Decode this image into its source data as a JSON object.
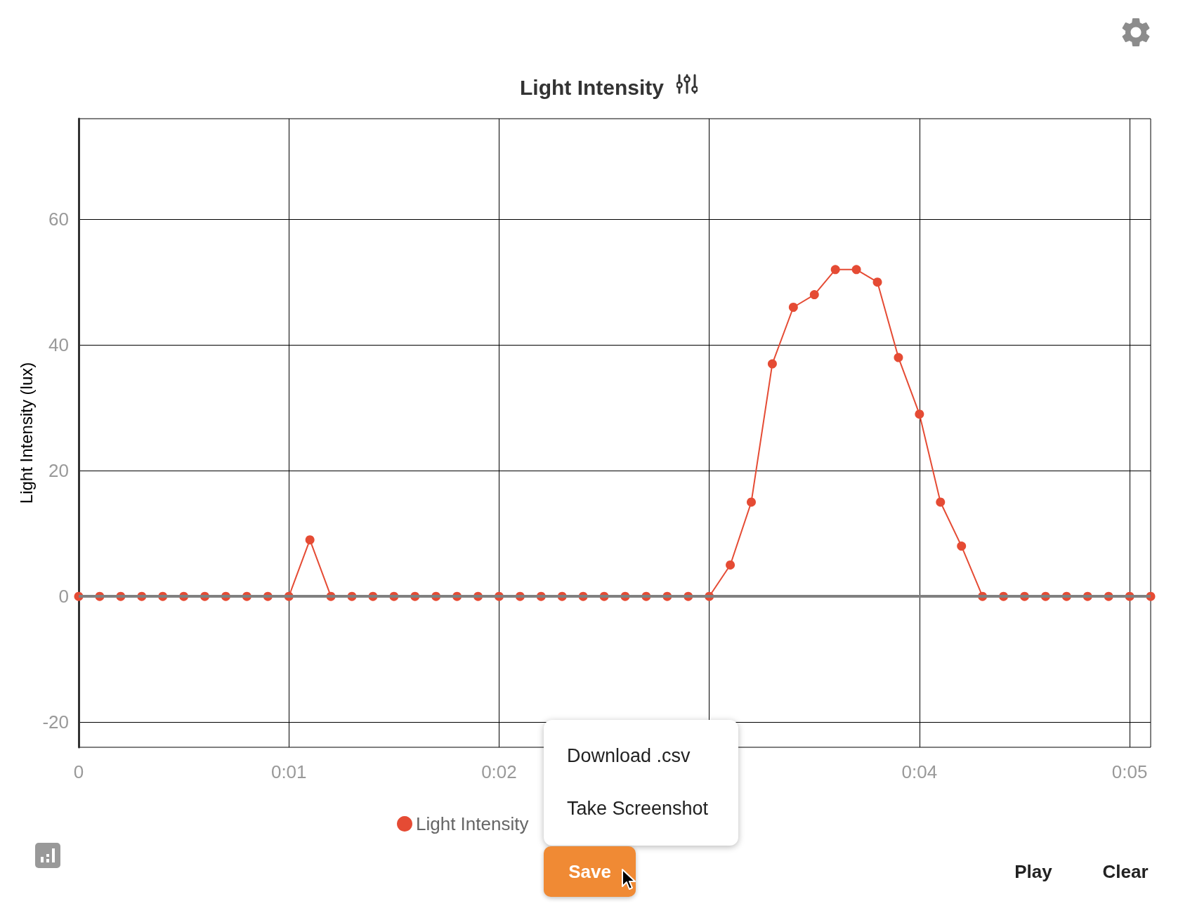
{
  "chart_data": {
    "type": "line",
    "title": "Light Intensity",
    "ylabel": "Light Intensity (lux)",
    "x": [
      0,
      0.1,
      0.2,
      0.3,
      0.4,
      0.5,
      0.6,
      0.7,
      0.8,
      0.9,
      1.0,
      1.1,
      1.2,
      1.3,
      1.4,
      1.5,
      1.6,
      1.7,
      1.8,
      1.9,
      2.0,
      2.1,
      2.2,
      2.3,
      2.4,
      2.5,
      2.6,
      2.7,
      2.8,
      2.9,
      3.0,
      3.1,
      3.2,
      3.3,
      3.4,
      3.5,
      3.6,
      3.7,
      3.8,
      3.9,
      4.0,
      4.1,
      4.2,
      4.3,
      4.4,
      4.5,
      4.6,
      4.7,
      4.8,
      4.9,
      5.0,
      5.1
    ],
    "series": [
      {
        "name": "Light Intensity",
        "color": "#e54b34",
        "values": [
          0,
          0,
          0,
          0,
          0,
          0,
          0,
          0,
          0,
          0,
          0,
          9,
          0,
          0,
          0,
          0,
          0,
          0,
          0,
          0,
          0,
          0,
          0,
          0,
          0,
          0,
          0,
          0,
          0,
          0,
          0,
          5,
          15,
          37,
          46,
          48,
          52,
          52,
          50,
          38,
          29,
          15,
          8,
          0,
          0,
          0,
          0,
          0,
          0,
          0,
          0,
          0
        ]
      }
    ],
    "xlim": [
      0,
      5.1
    ],
    "xticks": [
      0,
      {
        "value": 1,
        "label": "0:01"
      },
      {
        "value": 2,
        "label": "0:02"
      },
      {
        "value": 3,
        "label": null
      },
      {
        "value": 4,
        "label": "0:04"
      },
      {
        "value": 5,
        "label": "0:05"
      }
    ],
    "ylim": [
      -24,
      76
    ],
    "yticks": [
      -20,
      0,
      20,
      40,
      60
    ],
    "ref_lines": [
      {
        "axis": "y",
        "value": 0,
        "color": "#808080"
      }
    ],
    "grid": true,
    "legend": "bottom",
    "marker": "circle",
    "line_style": "solid",
    "annotations": [
      "Download .csv",
      "Take Screenshot",
      "Save",
      "Play",
      "Clear"
    ]
  }
}
